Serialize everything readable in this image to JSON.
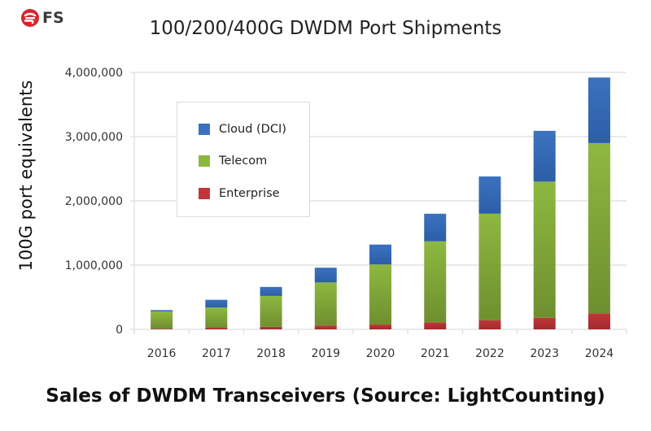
{
  "logo": {
    "text": "FS",
    "icon": "fs-logo-icon",
    "color": "#d7262c"
  },
  "chart_data": {
    "type": "bar",
    "stacked": true,
    "title": "100/200/400G DWDM Port Shipments",
    "xlabel": "",
    "ylabel": "100G port equivalents",
    "caption": "Sales of DWDM Transceivers (Source: LightCounting)",
    "categories": [
      "2016",
      "2017",
      "2018",
      "2019",
      "2020",
      "2021",
      "2022",
      "2023",
      "2024"
    ],
    "series": [
      {
        "name": "Enterprise",
        "color": "#c0373a",
        "values": [
          10000,
          25000,
          40000,
          60000,
          75000,
          110000,
          140000,
          180000,
          250000
        ]
      },
      {
        "name": "Telecom",
        "color": "#8db840",
        "values": [
          270000,
          315000,
          480000,
          670000,
          935000,
          1260000,
          1660000,
          2120000,
          2650000
        ]
      },
      {
        "name": "Cloud (DCI)",
        "color": "#3b72c0",
        "values": [
          20000,
          120000,
          140000,
          230000,
          310000,
          430000,
          580000,
          790000,
          1020000
        ]
      }
    ],
    "ylim": [
      0,
      4000000
    ],
    "yticks": [
      0,
      1000000,
      2000000,
      3000000,
      4000000
    ],
    "ytick_labels": [
      "0",
      "1,000,000",
      "2,000,000",
      "3,000,000",
      "4,000,000"
    ],
    "grid": true,
    "legend": {
      "placement": "upper-left inside",
      "entries": [
        "Cloud (DCI)",
        "Telecom",
        "Enterprise"
      ]
    }
  }
}
